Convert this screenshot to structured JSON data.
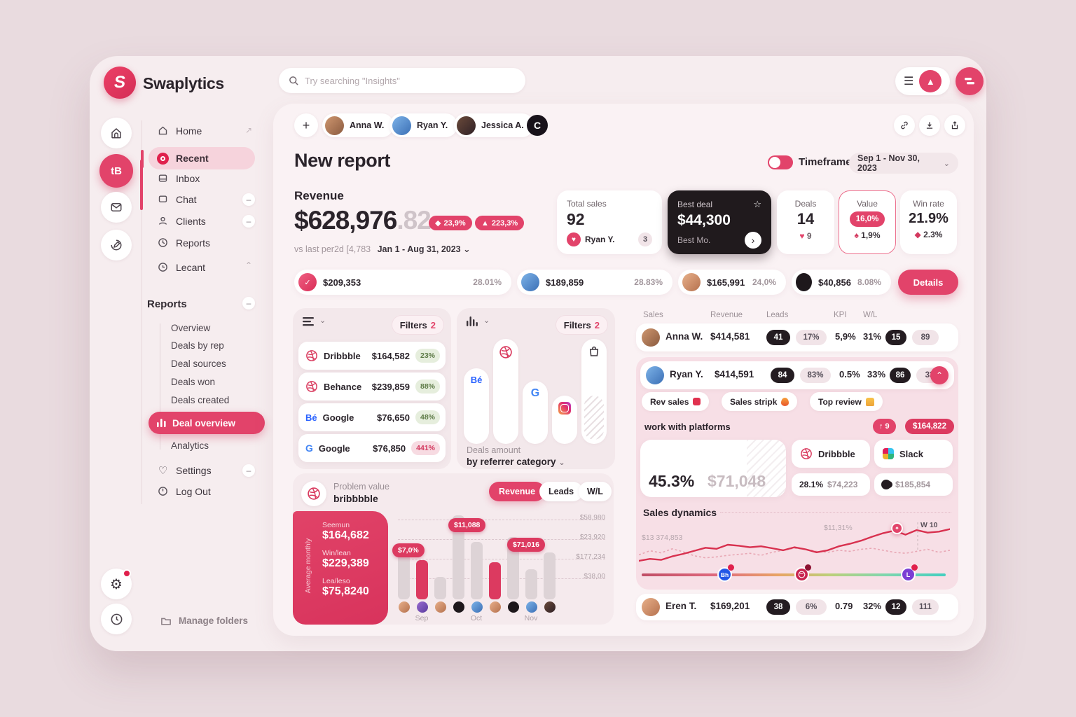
{
  "app": {
    "name": "Swaplytics"
  },
  "topbar": {
    "search_placeholder": "Try searching \"Insights\""
  },
  "sidebar": {
    "main": [
      {
        "label": "Home"
      },
      {
        "label": "Recent"
      },
      {
        "label": "Inbox"
      },
      {
        "label": "Chat"
      },
      {
        "label": "Clients"
      },
      {
        "label": "Reports"
      },
      {
        "label": "Lecant"
      }
    ],
    "section_title": "Reports",
    "reports": [
      {
        "label": "Overview"
      },
      {
        "label": "Deals by rep"
      },
      {
        "label": "Deal sources"
      },
      {
        "label": "Deals won"
      },
      {
        "label": "Deals created"
      },
      {
        "label": "Deal overview"
      },
      {
        "label": "Analytics"
      }
    ],
    "settings_label": "Settings",
    "logout_label": "Log Out",
    "manage_folders_label": "Manage folders"
  },
  "header": {
    "collaborators": [
      {
        "name": "Anna W."
      },
      {
        "name": "Ryan Y."
      },
      {
        "name": "Jessica A."
      }
    ],
    "extra_badge": "C",
    "title": "New report",
    "timeframe_label": "Timeframe",
    "timeframe_value": "Sep 1 - Nov 30, 2023"
  },
  "revenue": {
    "label": "Revenue",
    "amount": "$628,976",
    "cents": ".82",
    "badge_diamond": "23,9%",
    "badge_flag": "223,3%",
    "compare_note": "vs last per2d [4,783",
    "period": "Jan 1 - Aug 31, 2023"
  },
  "stat_cards": {
    "total_sales": {
      "label": "Total sales",
      "value": "92",
      "person": "Ryan Y.",
      "badge": "3"
    },
    "best_deal": {
      "label": "Best deal",
      "value": "$44,300",
      "sub": "Best Mo."
    },
    "deals": {
      "label": "Deals",
      "value": "14",
      "sub": "9"
    },
    "value": {
      "label": "Value",
      "badge": "16,0%",
      "sub": "1,9%"
    },
    "win_rate": {
      "label": "Win rate",
      "value": "21.9%",
      "sub": "2.3%"
    }
  },
  "summary_chips": [
    {
      "amount": "$209,353",
      "percent": "28.01%"
    },
    {
      "amount": "$189,859",
      "percent": "28.83%"
    },
    {
      "amount": "$165,991",
      "percent": "24,0%"
    },
    {
      "amount": "$40,856",
      "percent": "8.08%"
    }
  ],
  "details_button_label": "Details",
  "referrer_list": {
    "filters_label": "Filters",
    "filters_count": "2",
    "rows": [
      {
        "name": "Dribbble",
        "amount": "$164,582",
        "percent": "23%"
      },
      {
        "name": "Behance",
        "amount": "$239,859",
        "percent": "88%"
      },
      {
        "name": "Google",
        "amount": "$76,650",
        "percent": "48%"
      },
      {
        "name": "Google",
        "amount": "$76,850",
        "percent": "441%"
      }
    ]
  },
  "referrer_chart": {
    "filters_label": "Filters",
    "filters_count": "2",
    "caption_line1": "Deals amount",
    "caption_line2": "by referrer category",
    "platforms": [
      "behance",
      "dribbble",
      "google",
      "instagram",
      "bag"
    ]
  },
  "problem_value": {
    "title": "Problem value",
    "subtitle": "bribbbble",
    "tabs": [
      {
        "label": "Revenue"
      },
      {
        "label": "Leads"
      },
      {
        "label": "W/L"
      }
    ],
    "side_label": "Average monthly",
    "side_stats": [
      {
        "label": "Seemun",
        "value": "$164,682"
      },
      {
        "label": "Win/lean",
        "value": "$229,389"
      },
      {
        "label": "Lea/leso",
        "value": "$75,8240"
      }
    ],
    "bar_label_1": "$7,0%",
    "bar_label_2": "$11,088",
    "bar_label_3": "$71,016",
    "y_labels": [
      "$58,980",
      "$23,920",
      "$177,234",
      "$38,00"
    ],
    "x_labels": [
      "Sep",
      "Oct",
      "Nov"
    ]
  },
  "team_table": {
    "headers": [
      "Sales",
      "Revenue",
      "Leads",
      "KPI",
      "W/L"
    ],
    "rows": [
      {
        "name": "Anna W.",
        "revenue": "$414,581",
        "leads_count": "41",
        "leads_pct": "17%",
        "kpi": "5,9%",
        "wl_pct": "31%",
        "wl_count": "15",
        "wl_extra": "89"
      },
      {
        "name": "Ryan Y.",
        "revenue": "$414,591",
        "leads_count": "84",
        "leads_pct": "83%",
        "kpi": "0.5%",
        "wl_pct": "33%",
        "wl_count": "86",
        "wl_extra": "33"
      },
      {
        "name": "Eren T.",
        "revenue": "$169,201",
        "leads_count": "38",
        "leads_pct": "6%",
        "kpi": "0.79",
        "wl_pct": "32%",
        "wl_count": "12",
        "wl_extra": "111"
      }
    ],
    "tags": [
      {
        "label": "Rev sales"
      },
      {
        "label": "Sales stripk"
      },
      {
        "label": "Top review"
      }
    ],
    "platforms": {
      "heading": "work with platforms",
      "up_badge": "9",
      "amount_badge": "$164,822",
      "main_pct": "45.3%",
      "main_amount": "$71,048",
      "card1_label": "Dribbble",
      "card2_label": "Slack",
      "sub1_pct": "28.1%",
      "sub1_amount": "$74,223",
      "sub2_amount": "$185,854"
    },
    "dynamics": {
      "title": "Sales dynamics",
      "annotation_left": "$13 374,853",
      "annotation_mid": "$11,31%",
      "annotation_right": "W 10"
    }
  },
  "charts": {
    "problem_bars": {
      "type": "bar",
      "values": [
        52,
        45,
        26,
        97,
        66,
        43,
        72,
        35,
        54
      ],
      "highlight_indexes": [
        1,
        5
      ],
      "x_groups": [
        "Sep",
        "Oct",
        "Nov"
      ]
    },
    "referrer_bars": {
      "type": "bar",
      "values": [
        72,
        100,
        60,
        46,
        100
      ]
    },
    "sales_dynamics": {
      "type": "line",
      "series": [
        {
          "name": "current",
          "style": "solid",
          "values": [
            18,
            22,
            20,
            27,
            32,
            38,
            44,
            42,
            50,
            48,
            45,
            47,
            43,
            39,
            45,
            41,
            35,
            39,
            47,
            52,
            58,
            66,
            73,
            78,
            70,
            79,
            74,
            76,
            81
          ]
        },
        {
          "name": "previous",
          "style": "dashed",
          "values": [
            30,
            38,
            34,
            42,
            36,
            28,
            24,
            26,
            29,
            31,
            33,
            29,
            35,
            39,
            43,
            41,
            37,
            35,
            39,
            37,
            41,
            43,
            39,
            35,
            33,
            37,
            41,
            35,
            39
          ]
        }
      ]
    }
  }
}
